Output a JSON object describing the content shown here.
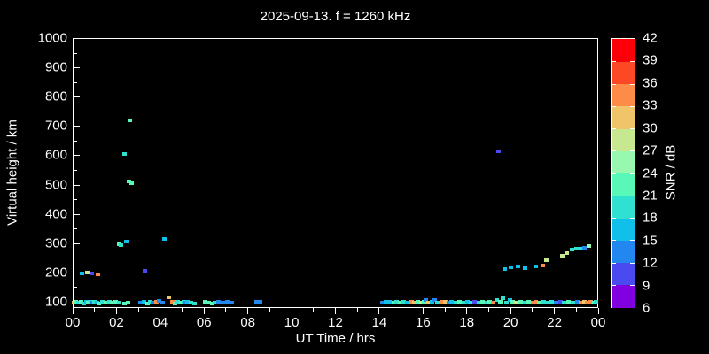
{
  "chart_data": {
    "type": "scatter",
    "title": "2025-09-13. f = 1260 kHz",
    "xlabel": "UT Time / hrs",
    "ylabel": "Virtual height / km",
    "background_color": "#000000",
    "axis_color": "#ffffff",
    "x_range_hours": [
      0,
      24
    ],
    "y_range_km": [
      79,
      1000
    ],
    "x_tick_hours": [
      0,
      2,
      4,
      6,
      8,
      10,
      12,
      14,
      16,
      18,
      20,
      22,
      24
    ],
    "x_tick_labels": [
      "00",
      "02",
      "04",
      "06",
      "08",
      "10",
      "12",
      "14",
      "16",
      "18",
      "20",
      "22",
      "00"
    ],
    "x_minor_tick_hours": [
      1,
      3,
      5,
      7,
      9,
      11,
      13,
      15,
      17,
      19,
      21,
      23
    ],
    "y_tick_km": [
      100,
      200,
      300,
      400,
      500,
      600,
      700,
      800,
      900,
      1000
    ],
    "y_tick_labels": [
      "100",
      "200",
      "300",
      "400",
      "500",
      "600",
      "700",
      "800",
      "900",
      "1000"
    ],
    "y_minor_tick_km": [
      150,
      250,
      350,
      450,
      550,
      650,
      750,
      850,
      950
    ],
    "colorbar": {
      "label": "SNR / dB",
      "min": 6,
      "max": 42,
      "step": 3,
      "tick_values": [
        6,
        9,
        12,
        15,
        18,
        21,
        24,
        27,
        30,
        33,
        36,
        39,
        42
      ],
      "bin_colors_bottom_to_top": [
        "#8000E0",
        "#4A4AF0",
        "#2288F0",
        "#10C0E8",
        "#30E0D0",
        "#58F8B8",
        "#98F8B0",
        "#C8E890",
        "#F0C468",
        "#FC8C48",
        "#FC4824",
        "#FC0008"
      ]
    },
    "points_format": [
      "ut_hours",
      "virtual_height_km",
      "snr_db"
    ],
    "points": [
      [
        0.0,
        100,
        31.5
      ],
      [
        0.1,
        104,
        22.5
      ],
      [
        0.22,
        100,
        19.5
      ],
      [
        0.34,
        102,
        22.5
      ],
      [
        0.45,
        98,
        19.5
      ],
      [
        0.55,
        102,
        16.5
      ],
      [
        0.65,
        100,
        22.5
      ],
      [
        0.75,
        104,
        19.5
      ],
      [
        0.85,
        100,
        13.5
      ],
      [
        0.95,
        102,
        19.5
      ],
      [
        1.05,
        100,
        16.5
      ],
      [
        1.15,
        98,
        22.5
      ],
      [
        1.3,
        102,
        19.5
      ],
      [
        1.45,
        100,
        22.5
      ],
      [
        1.6,
        104,
        19.5
      ],
      [
        1.75,
        100,
        22.5
      ],
      [
        1.9,
        102,
        22.5
      ],
      [
        2.05,
        100,
        19.5
      ],
      [
        2.3,
        98,
        22.5
      ],
      [
        2.45,
        100,
        22.5
      ],
      [
        3.05,
        100,
        13.5
      ],
      [
        3.2,
        102,
        16.5
      ],
      [
        3.35,
        98,
        22.5
      ],
      [
        3.5,
        104,
        19.5
      ],
      [
        3.6,
        100,
        13.5
      ],
      [
        3.75,
        102,
        34.5
      ],
      [
        3.9,
        106,
        13.5
      ],
      [
        4.05,
        100,
        13.5
      ],
      [
        4.35,
        118,
        31.5
      ],
      [
        4.5,
        102,
        34.5
      ],
      [
        4.6,
        98,
        22.5
      ],
      [
        4.75,
        102,
        19.5
      ],
      [
        4.9,
        100,
        22.5
      ],
      [
        5.0,
        104,
        19.5
      ],
      [
        5.1,
        100,
        13.5
      ],
      [
        5.2,
        102,
        16.5
      ],
      [
        5.35,
        100,
        19.5
      ],
      [
        5.5,
        98,
        19.5
      ],
      [
        6.0,
        102,
        22.5
      ],
      [
        6.15,
        100,
        22.5
      ],
      [
        6.3,
        98,
        22.5
      ],
      [
        6.45,
        100,
        19.5
      ],
      [
        6.6,
        104,
        13.5
      ],
      [
        6.8,
        100,
        13.5
      ],
      [
        7.0,
        102,
        13.5
      ],
      [
        7.2,
        100,
        13.5
      ],
      [
        8.35,
        104,
        13.5
      ],
      [
        8.5,
        102,
        13.5
      ],
      [
        14.1,
        100,
        13.5
      ],
      [
        14.25,
        104,
        16.5
      ],
      [
        14.4,
        102,
        16.5
      ],
      [
        14.6,
        100,
        22.5
      ],
      [
        14.75,
        102,
        19.5
      ],
      [
        14.9,
        100,
        22.5
      ],
      [
        15.05,
        104,
        19.5
      ],
      [
        15.2,
        100,
        16.5
      ],
      [
        15.4,
        102,
        34.5
      ],
      [
        15.55,
        100,
        31.5
      ],
      [
        15.7,
        104,
        22.5
      ],
      [
        15.85,
        100,
        28.5
      ],
      [
        16.0,
        102,
        22.5
      ],
      [
        16.07,
        108,
        13.5
      ],
      [
        16.2,
        100,
        31.5
      ],
      [
        16.35,
        102,
        16.5
      ],
      [
        16.47,
        108,
        13.5
      ],
      [
        16.6,
        100,
        19.5
      ],
      [
        16.8,
        102,
        34.5
      ],
      [
        16.95,
        104,
        31.5
      ],
      [
        17.1,
        100,
        13.5
      ],
      [
        17.25,
        102,
        16.5
      ],
      [
        17.45,
        100,
        19.5
      ],
      [
        17.6,
        104,
        22.5
      ],
      [
        17.8,
        100,
        19.5
      ],
      [
        17.95,
        102,
        16.5
      ],
      [
        18.15,
        100,
        19.5
      ],
      [
        18.3,
        104,
        10.5
      ],
      [
        18.5,
        100,
        19.5
      ],
      [
        18.65,
        102,
        22.5
      ],
      [
        18.85,
        100,
        19.5
      ],
      [
        19.0,
        104,
        22.5
      ],
      [
        19.15,
        100,
        34.5
      ],
      [
        19.3,
        110,
        19.5
      ],
      [
        19.45,
        102,
        22.5
      ],
      [
        19.6,
        114,
        19.5
      ],
      [
        19.75,
        100,
        19.5
      ],
      [
        19.9,
        110,
        16.5
      ],
      [
        20.05,
        102,
        22.5
      ],
      [
        20.2,
        100,
        28.5
      ],
      [
        20.4,
        104,
        22.5
      ],
      [
        20.6,
        100,
        19.5
      ],
      [
        20.75,
        102,
        22.5
      ],
      [
        20.95,
        100,
        34.5
      ],
      [
        21.1,
        102,
        34.5
      ],
      [
        21.25,
        100,
        22.5
      ],
      [
        21.45,
        104,
        19.5
      ],
      [
        21.6,
        100,
        19.5
      ],
      [
        21.8,
        102,
        19.5
      ],
      [
        22.0,
        100,
        13.5
      ],
      [
        22.2,
        104,
        10.5
      ],
      [
        22.4,
        100,
        19.5
      ],
      [
        22.6,
        102,
        22.5
      ],
      [
        22.8,
        100,
        19.5
      ],
      [
        23.0,
        104,
        13.5
      ],
      [
        23.15,
        100,
        34.5
      ],
      [
        23.3,
        102,
        31.5
      ],
      [
        23.45,
        100,
        34.5
      ],
      [
        23.6,
        102,
        34.5
      ],
      [
        23.75,
        100,
        22.5
      ],
      [
        23.9,
        102,
        19.5
      ],
      [
        24.0,
        100,
        19.5
      ],
      [
        0.35,
        200,
        16.5
      ],
      [
        0.62,
        202,
        28.5
      ],
      [
        0.8,
        200,
        10.5
      ],
      [
        1.1,
        198,
        34.5
      ],
      [
        3.25,
        210,
        10.5
      ],
      [
        2.05,
        300,
        22.5
      ],
      [
        2.15,
        296,
        19.5
      ],
      [
        2.38,
        308,
        16.5
      ],
      [
        2.3,
        608,
        19.5
      ],
      [
        2.5,
        515,
        22.5
      ],
      [
        2.56,
        722,
        22.5
      ],
      [
        2.65,
        508,
        22.5
      ],
      [
        4.12,
        318,
        16.5
      ],
      [
        19.4,
        618,
        10.5
      ],
      [
        19.65,
        215,
        16.5
      ],
      [
        19.95,
        221,
        16.5
      ],
      [
        20.28,
        224,
        16.5
      ],
      [
        20.6,
        218,
        16.5
      ],
      [
        21.08,
        224,
        16.5
      ],
      [
        21.4,
        227,
        34.5
      ],
      [
        21.58,
        245,
        28.5
      ],
      [
        22.3,
        260,
        28.5
      ],
      [
        22.5,
        269,
        28.5
      ],
      [
        22.75,
        281,
        19.5
      ],
      [
        22.95,
        284,
        19.5
      ],
      [
        23.15,
        284,
        19.5
      ],
      [
        23.32,
        287,
        13.5
      ],
      [
        23.52,
        293,
        25.5
      ]
    ]
  }
}
